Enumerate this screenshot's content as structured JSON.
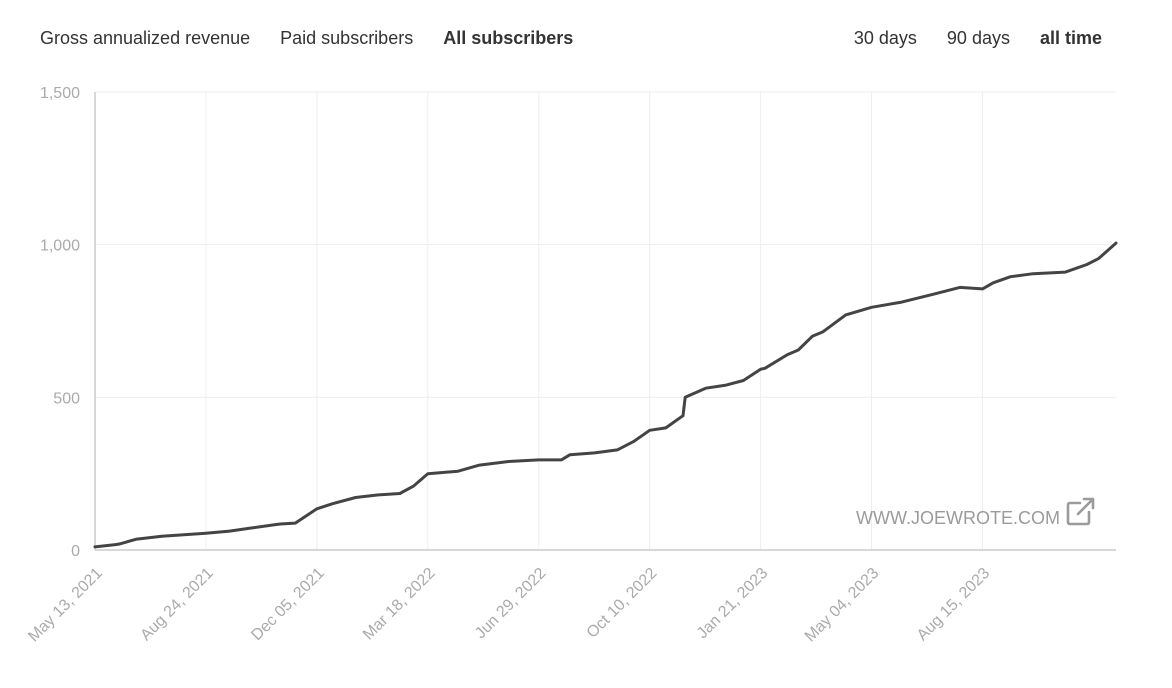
{
  "metric_tabs": [
    {
      "label": "Gross annualized revenue",
      "active": false
    },
    {
      "label": "Paid subscribers",
      "active": false
    },
    {
      "label": "All subscribers",
      "active": true
    }
  ],
  "range_tabs": [
    {
      "label": "30 days",
      "active": false
    },
    {
      "label": "90 days",
      "active": false
    },
    {
      "label": "all time",
      "active": true
    }
  ],
  "watermark": {
    "text": "WWW.JOEWROTE.COM",
    "icon": "external-link-icon"
  },
  "colors": {
    "line": "#444444",
    "grid": "#eeeeee",
    "axis": "#cccccc",
    "tick": "#aaaaaa",
    "watermark": "#9b9b9b"
  },
  "chart_data": {
    "type": "line",
    "title": "",
    "xlabel": "",
    "ylabel": "",
    "ylim": [
      0,
      1500
    ],
    "y_ticks": [
      0,
      500,
      1000,
      1500
    ],
    "y_tick_labels": [
      "0",
      "500",
      "1,000",
      "1,500"
    ],
    "x_tick_labels": [
      "May 13, 2021",
      "Aug 24, 2021",
      "Dec 05, 2021",
      "Mar 18, 2022",
      "Jun 29, 2022",
      "Oct 10, 2022",
      "Jan 21, 2023",
      "May 04, 2023",
      "Aug 15, 2023"
    ],
    "x_range": [
      "2021-05-13",
      "2023-12-17"
    ],
    "grid": true,
    "legend": "none",
    "series": [
      {
        "name": "",
        "x": [
          "2021-05-13",
          "2021-06-02",
          "2021-06-05",
          "2021-06-20",
          "2021-07-14",
          "2021-08-24",
          "2021-09-15",
          "2021-10-05",
          "2021-10-25",
          "2021-11-01",
          "2021-11-15",
          "2021-12-05",
          "2021-12-20",
          "2022-01-10",
          "2022-01-30",
          "2022-02-20",
          "2022-03-05",
          "2022-03-18",
          "2022-04-05",
          "2022-04-15",
          "2022-05-05",
          "2022-06-01",
          "2022-06-29",
          "2022-07-20",
          "2022-07-28",
          "2022-08-20",
          "2022-09-10",
          "2022-09-25",
          "2022-10-10",
          "2022-10-25",
          "2022-11-10",
          "2022-11-12",
          "2022-12-01",
          "2022-12-20",
          "2023-01-05",
          "2023-01-21",
          "2023-01-25",
          "2023-02-15",
          "2023-02-25",
          "2023-03-10",
          "2023-03-20",
          "2023-04-10",
          "2023-05-04",
          "2023-06-01",
          "2023-07-01",
          "2023-07-25",
          "2023-08-15",
          "2023-08-25",
          "2023-09-10",
          "2023-10-01",
          "2023-10-31",
          "2023-11-20",
          "2023-12-01",
          "2023-12-17"
        ],
        "y": [
          10,
          18,
          20,
          35,
          45,
          55,
          62,
          72,
          82,
          85,
          88,
          135,
          152,
          172,
          180,
          185,
          210,
          250,
          255,
          258,
          278,
          290,
          295,
          295,
          312,
          318,
          328,
          355,
          392,
          400,
          440,
          500,
          530,
          540,
          555,
          592,
          595,
          640,
          655,
          700,
          715,
          770,
          795,
          812,
          838,
          860,
          855,
          875,
          895,
          905,
          910,
          935,
          955,
          1005
        ]
      }
    ]
  }
}
